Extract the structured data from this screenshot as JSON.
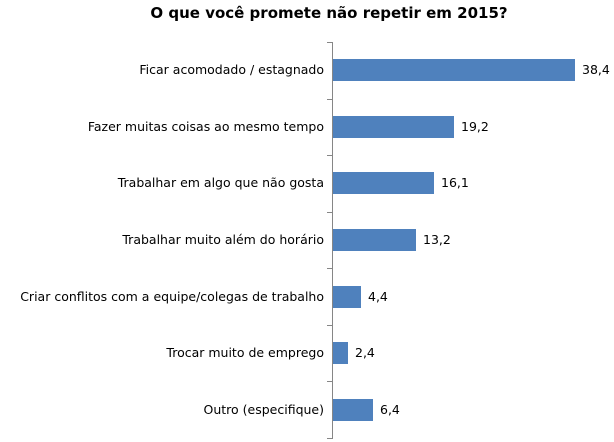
{
  "chart_data": {
    "type": "bar",
    "orientation": "horizontal",
    "title": "O que você promete não repetir em 2015?",
    "xlabel": "",
    "ylabel": "",
    "categories": [
      "Ficar acomodado / estagnado",
      "Fazer muitas coisas ao mesmo tempo",
      "Trabalhar em algo que não gosta",
      "Trabalhar muito além do horário",
      "Criar conflitos com a equipe/colegas de trabalho",
      "Trocar muito de emprego",
      "Outro (especifique)"
    ],
    "values": [
      38.4,
      19.2,
      16.1,
      13.2,
      4.4,
      2.4,
      6.4
    ],
    "value_labels": [
      "38,4",
      "19,2",
      "16,1",
      "13,2",
      "4,4",
      "2,4",
      "6,4"
    ],
    "xlim": [
      0,
      40
    ],
    "grid": false,
    "legend": null,
    "bar_color": "#4F81BD"
  }
}
